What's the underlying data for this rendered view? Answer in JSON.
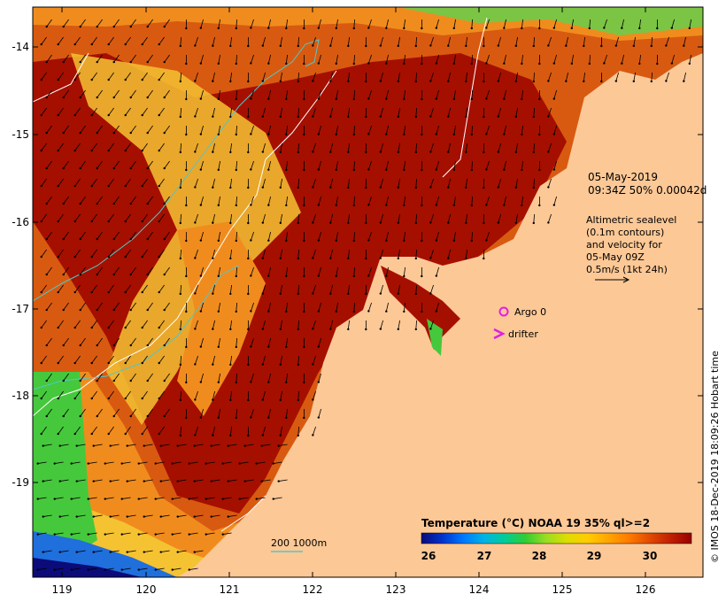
{
  "map": {
    "date_line": "05-May-2019",
    "time_line": "09:34Z  50% 0.00042d",
    "legend_text": [
      "Altimetric sealevel",
      "(0.1m contours)",
      "and velocity for",
      "05-May 09Z",
      "0.5m/s (1kt 24h)"
    ],
    "argo_label": "Argo 0",
    "drifter_label": "drifter",
    "depth_label": "200  1000m",
    "credit": "© IMOS 18-Dec-2019 18:09:26 Hobart time",
    "x_ticks": [
      "119",
      "120",
      "121",
      "122",
      "123",
      "124",
      "125",
      "126"
    ],
    "y_ticks": [
      "-14",
      "-15",
      "-16",
      "-17",
      "-18",
      "-19"
    ],
    "colorbar": {
      "title": "Temperature (°C) NOAA 19 35% ql>=2",
      "labels": [
        "26",
        "27",
        "28",
        "29",
        "30"
      ],
      "colors": [
        "#0b0b7a",
        "#0033cc",
        "#0077ff",
        "#00b3e6",
        "#00cc99",
        "#33cc33",
        "#99dd22",
        "#dddd00",
        "#ffcc00",
        "#ffa500",
        "#ff7a00",
        "#e04a00",
        "#c02000",
        "#990000"
      ]
    },
    "colors": {
      "land": "#fcc896",
      "sea_hot": "#a50f00",
      "sea_warm": "#d85a10",
      "sea_orange": "#f08c1e",
      "sea_yellow": "#f5c232",
      "sea_green": "#46c83c",
      "contour": "#4fc8c8",
      "magenta": "#e020e0"
    }
  }
}
